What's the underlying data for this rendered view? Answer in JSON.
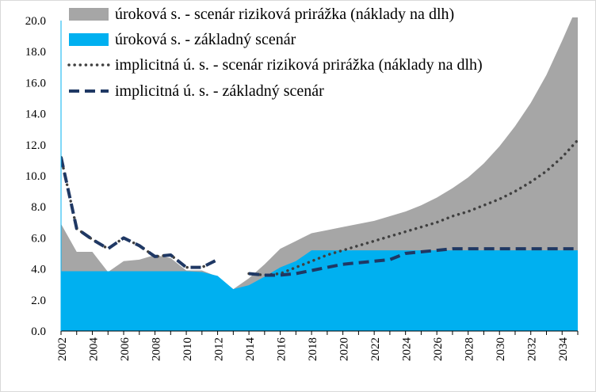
{
  "chart_data": {
    "type": "area",
    "x": [
      2002,
      2003,
      2004,
      2005,
      2006,
      2007,
      2008,
      2009,
      2010,
      2011,
      2012,
      2013,
      2014,
      2015,
      2016,
      2017,
      2018,
      2019,
      2020,
      2021,
      2022,
      2023,
      2024,
      2025,
      2026,
      2027,
      2028,
      2029,
      2030,
      2031,
      2032,
      2033,
      2034,
      2035
    ],
    "x_tick_labels": [
      "2002",
      "2004",
      "2006",
      "2008",
      "2010",
      "2012",
      "2014",
      "2016",
      "2018",
      "2020",
      "2022",
      "2024",
      "2026",
      "2028",
      "2030",
      "2032",
      "2034"
    ],
    "y_tick_labels": [
      "0.0",
      "2.0",
      "4.0",
      "6.0",
      "8.0",
      "10.0",
      "12.0",
      "14.0",
      "16.0",
      "18.0",
      "20.0"
    ],
    "ylim": [
      0,
      20
    ],
    "grid": false,
    "legend_position": "top",
    "series": [
      {
        "name": "úroková s. - scenár riziková prirážka (náklady na dlh)",
        "kind": "area",
        "color": "#a6a6a6",
        "values": [
          6.9,
          5.1,
          5.1,
          3.8,
          4.5,
          4.6,
          4.9,
          4.7,
          3.9,
          3.9,
          3.5,
          2.7,
          3.4,
          4.3,
          5.3,
          5.8,
          6.3,
          6.5,
          6.7,
          6.9,
          7.1,
          7.4,
          7.7,
          8.1,
          8.6,
          9.2,
          9.9,
          10.8,
          11.9,
          13.2,
          14.7,
          16.5,
          18.7,
          21.0
        ]
      },
      {
        "name": "úroková s. - základný scenár",
        "kind": "area",
        "color": "#00b0f0",
        "values": [
          3.85,
          3.85,
          3.85,
          3.85,
          3.85,
          3.85,
          3.85,
          3.85,
          3.85,
          3.8,
          3.55,
          2.7,
          2.95,
          3.5,
          4.1,
          4.5,
          5.2,
          5.2,
          5.2,
          5.2,
          5.2,
          5.2,
          5.2,
          5.2,
          5.2,
          5.2,
          5.2,
          5.2,
          5.2,
          5.2,
          5.2,
          5.2,
          5.2,
          5.2
        ]
      },
      {
        "name": "implicitná ú. s. - scenár riziková prirážka (náklady na dlh)",
        "kind": "dotted-line",
        "color": "#404040",
        "values": [
          11.2,
          6.6,
          5.9,
          5.3,
          6.0,
          5.5,
          4.8,
          4.9,
          4.1,
          4.1,
          4.6,
          null,
          3.7,
          3.6,
          3.7,
          4.1,
          4.5,
          4.9,
          5.2,
          5.5,
          5.8,
          6.1,
          6.4,
          6.7,
          7.0,
          7.4,
          7.7,
          8.1,
          8.5,
          9.0,
          9.6,
          10.3,
          11.2,
          12.3
        ]
      },
      {
        "name": "implicitná ú. s. - základný scenár",
        "kind": "dashed-line",
        "color": "#1f3864",
        "values": [
          11.2,
          6.6,
          5.9,
          5.3,
          6.0,
          5.5,
          4.8,
          4.9,
          4.1,
          4.1,
          4.6,
          null,
          3.7,
          3.6,
          3.6,
          3.7,
          3.9,
          4.1,
          4.3,
          4.4,
          4.5,
          4.6,
          5.0,
          5.1,
          5.2,
          5.3,
          5.3,
          5.3,
          5.3,
          5.3,
          5.3,
          5.3,
          5.3,
          5.3
        ]
      }
    ]
  }
}
